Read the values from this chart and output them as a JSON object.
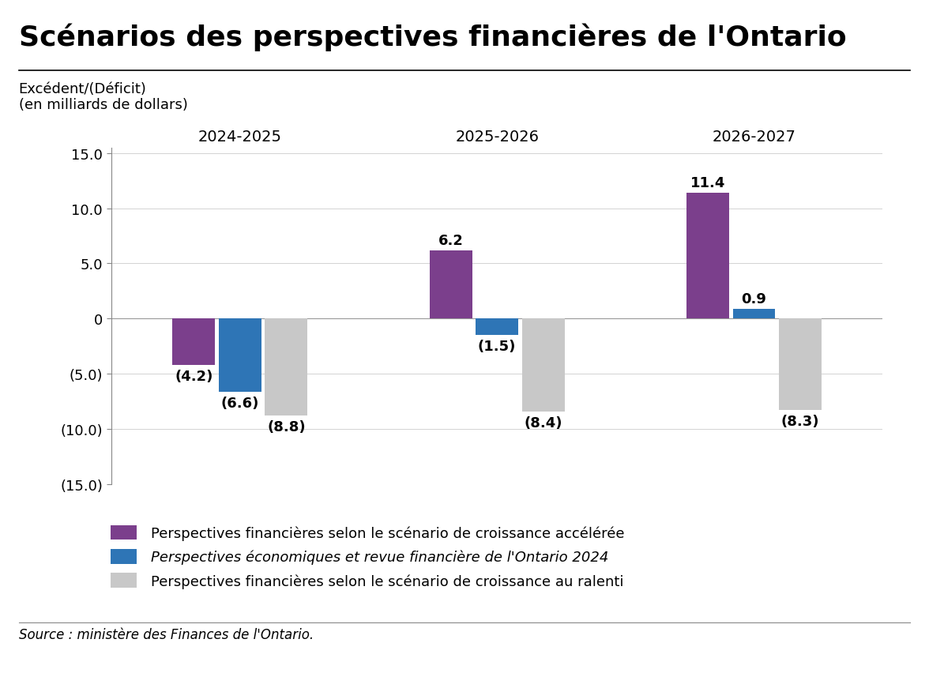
{
  "title": "Scénarios des perspectives financières de l'Ontario",
  "ylabel_line1": "Excédent/(Déficit)",
  "ylabel_line2": "(en milliards de dollars)",
  "source": "Source : ministère des Finances de l'Ontario.",
  "groups": [
    "2024-2025",
    "2025-2026",
    "2026-2027"
  ],
  "series": [
    {
      "name": "Perspectives financières selon le scénario de croissance accélérée",
      "color": "#7B3F8C",
      "italic": false,
      "values": [
        -4.2,
        6.2,
        11.4
      ]
    },
    {
      "name": "Perspectives économiques et revue financière de l'Ontario 2024",
      "color": "#2E75B6",
      "italic": true,
      "values": [
        -6.6,
        -1.5,
        0.9
      ]
    },
    {
      "name": "Perspectives financières selon le scénario de croissance au ralenti",
      "color": "#C8C8C8",
      "italic": false,
      "values": [
        -8.8,
        -8.4,
        -8.3
      ]
    }
  ],
  "ylim": [
    -15.0,
    15.5
  ],
  "yticks": [
    -15.0,
    -10.0,
    -5.0,
    0.0,
    5.0,
    10.0,
    15.0
  ],
  "ytick_labels": [
    "(15.0)",
    "(10.0)",
    "(5.0)",
    "0",
    "5.0",
    "10.0",
    "15.0"
  ],
  "background_color": "#FFFFFF",
  "bar_width": 0.18,
  "title_fontsize": 26,
  "label_fontsize": 13,
  "tick_fontsize": 13,
  "legend_fontsize": 13,
  "source_fontsize": 12,
  "group_label_fontsize": 14
}
